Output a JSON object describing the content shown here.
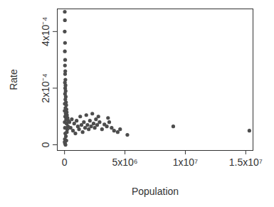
{
  "chart_data": {
    "type": "scatter",
    "xlabel": "Population",
    "ylabel": "Rate",
    "color": "#4d4d4d",
    "marker": "circle",
    "xlim": [
      -600000,
      15600000
    ],
    "ylim": [
      -2e-05,
      0.00048
    ],
    "xticks": [
      0,
      {
        "value": 5000000,
        "label": "5x10⁶"
      },
      {
        "value": 10000000,
        "label": "1x10⁷"
      },
      {
        "value": 15000000,
        "label": "1.5x10⁷"
      }
    ],
    "yticks": [
      0,
      {
        "value": 0.0002,
        "label": "2x10⁻⁴"
      },
      {
        "value": 0.0004,
        "label": "4x10⁻⁴"
      }
    ],
    "x": [
      20000,
      30000,
      15000,
      40000,
      25000,
      50000,
      35000,
      60000,
      45000,
      70000,
      30000,
      80000,
      55000,
      90000,
      40000,
      100000,
      65000,
      120000,
      20000,
      140000,
      75000,
      160000,
      10000,
      180000,
      95000,
      200000,
      50000,
      250000,
      130000,
      300000,
      15000,
      170000,
      35000,
      220000,
      60000,
      110000,
      25000,
      150000,
      40000,
      80000,
      10000,
      190000,
      280000,
      400000,
      500000,
      600000,
      700000,
      800000,
      900000,
      1000000,
      1100000,
      1200000,
      1300000,
      1400000,
      1500000,
      1600000,
      1700000,
      1800000,
      1900000,
      2000000,
      2100000,
      2200000,
      2300000,
      2400000,
      2500000,
      2600000,
      2700000,
      2800000,
      2900000,
      3100000,
      3300000,
      3500000,
      3600000,
      3700000,
      3900000,
      4100000,
      4400000,
      4600000,
      5200000,
      9000000,
      15300000
    ],
    "values": [
      0.00047,
      0.00044,
      0.0004,
      0.00036,
      0.00033,
      0.0003,
      0.00028,
      0.00026,
      0.00025,
      0.00023,
      0.00022,
      0.00021,
      0.0002,
      0.00019,
      0.00018,
      0.00017,
      0.00016,
      0.00015,
      0.000145,
      0.00014,
      0.00013,
      0.000125,
      0.00012,
      0.000115,
      0.00011,
      0.000105,
      0.0001,
      9.5e-05,
      9e-05,
      8.5e-05,
      8e-05,
      7.5e-05,
      6e-05,
      5.5e-05,
      4e-05,
      3e-05,
      2e-05,
      1.5e-05,
      5e-06,
      0.0,
      1e-05,
      4.5e-05,
      6.5e-05,
      8e-05,
      6e-05,
      9e-05,
      5e-05,
      7.5e-05,
      4e-05,
      8.5e-05,
      6.5e-05,
      5.5e-05,
      0.0001,
      7e-05,
      4.5e-05,
      8e-05,
      6e-05,
      0.000105,
      7e-05,
      5.5e-05,
      8.5e-05,
      6.5e-05,
      0.00011,
      7.5e-05,
      6e-05,
      9e-05,
      7e-05,
      0.0001,
      8e-05,
      5.5e-05,
      7.2e-05,
      6.5e-05,
      9.5e-05,
      8e-05,
      6e-05,
      5e-05,
      4.5e-05,
      5.5e-05,
      3.5e-05,
      6.5e-05,
      5e-05
    ]
  }
}
